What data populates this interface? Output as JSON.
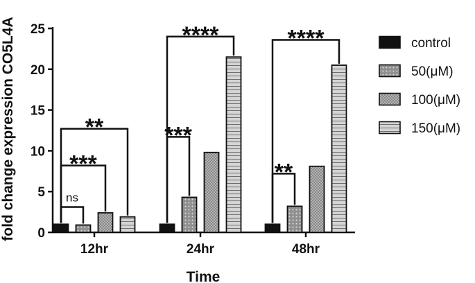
{
  "chart_data": {
    "type": "bar",
    "xlabel": "Time",
    "ylabel": "fold change expression CO5L4A",
    "ylim": [
      0,
      25
    ],
    "yticks": [
      0,
      5,
      10,
      15,
      20,
      25
    ],
    "categories": [
      "12hr",
      "24hr",
      "48hr"
    ],
    "series": [
      {
        "name": "control",
        "values": [
          1.0,
          1.0,
          1.0
        ],
        "fill": "#111111",
        "pattern": "solid"
      },
      {
        "name": "50(μM)",
        "values": [
          0.9,
          4.3,
          3.2
        ],
        "fill": "#8f8f8f",
        "pattern": "dots"
      },
      {
        "name": "100(μM)",
        "values": [
          2.4,
          9.8,
          8.1
        ],
        "fill": "#8a8a8a",
        "pattern": "dense-dots"
      },
      {
        "name": "150(μM)",
        "values": [
          1.9,
          21.5,
          20.5
        ],
        "fill": "#c8c8c8",
        "pattern": "horizontal-lines"
      }
    ],
    "legend": "right",
    "significance": [
      {
        "group": 0,
        "from": 0,
        "to": 1,
        "label": "ns",
        "y": 3.1
      },
      {
        "group": 0,
        "from": 0,
        "to": 2,
        "label": "***",
        "y": 8.2
      },
      {
        "group": 0,
        "from": 0,
        "to": 3,
        "label": "**",
        "y": 12.7
      },
      {
        "group": 1,
        "from": 0,
        "to": 1,
        "label": "***",
        "y": 11.7
      },
      {
        "group": 1,
        "from": 0,
        "to": 3,
        "label": "****",
        "y": 24.0
      },
      {
        "group": 2,
        "from": 0,
        "to": 1,
        "label": "**",
        "y": 7.2
      },
      {
        "group": 2,
        "from": 0,
        "to": 3,
        "label": "****",
        "y": 23.6
      }
    ]
  }
}
